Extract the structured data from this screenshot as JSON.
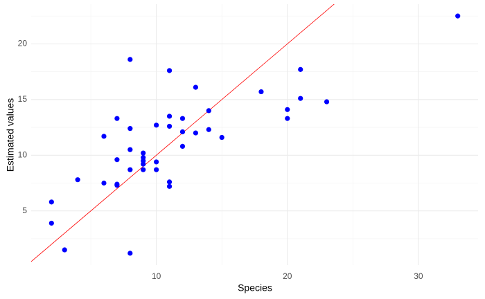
{
  "chart_data": {
    "type": "scatter",
    "x_label": "Species",
    "y_label": "Estimated values",
    "series": [
      {
        "color": "#0000ff",
        "x": [
          2,
          2,
          3,
          4,
          6,
          6,
          7,
          7,
          7,
          7,
          8,
          8,
          8,
          8,
          8,
          9,
          9,
          9,
          9,
          9,
          10,
          10,
          10,
          11,
          11,
          11,
          11,
          11,
          12,
          12,
          12,
          13,
          13,
          14,
          14,
          15,
          18,
          20,
          20,
          21,
          21,
          23,
          33
        ],
        "values": [
          5.8,
          3.9,
          1.5,
          7.8,
          11.7,
          7.5,
          13.3,
          9.6,
          7.4,
          7.3,
          18.6,
          12.4,
          10.5,
          8.7,
          1.2,
          10.2,
          9.8,
          9.5,
          9.2,
          8.7,
          12.7,
          9.4,
          8.7,
          17.6,
          13.5,
          12.6,
          7.6,
          7.2,
          13.3,
          12.1,
          10.8,
          16.1,
          12.0,
          14.0,
          12.3,
          11.6,
          15.7,
          14.1,
          13.3,
          17.7,
          15.1,
          14.8,
          22.5
        ]
      }
    ],
    "reference_line": {
      "slope": 1,
      "intercept": 0,
      "color": "#ff0000"
    },
    "xlim": [
      0.45,
      34.55
    ],
    "ylim": [
      0.135,
      23.565
    ],
    "xticks": [
      10,
      20,
      30
    ],
    "yticks": [
      5,
      10,
      15,
      20
    ],
    "x_minor_grid": [
      5,
      15,
      25
    ],
    "y_minor_grid": [
      2.5,
      7.5,
      12.5,
      17.5,
      22.5
    ],
    "grid": true
  }
}
